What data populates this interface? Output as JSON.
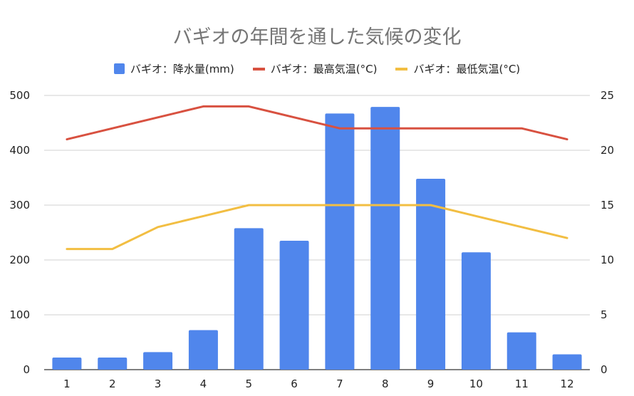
{
  "chart_data": {
    "type": "bar",
    "title": "バギオの年間を通した気候の変化",
    "categories": [
      "1",
      "2",
      "3",
      "4",
      "5",
      "6",
      "7",
      "8",
      "9",
      "10",
      "11",
      "12"
    ],
    "series": [
      {
        "name": "バギオ：降水量(mm)",
        "kind": "bar",
        "axis": "left",
        "color": "#5086ec",
        "values": [
          22,
          22,
          32,
          72,
          258,
          235,
          467,
          479,
          348,
          214,
          68,
          28
        ]
      },
      {
        "name": "バギオ：最高気温(°C)",
        "kind": "line",
        "axis": "right",
        "color": "#d85140",
        "values": [
          21,
          22,
          23,
          24,
          24,
          23,
          22,
          22,
          22,
          22,
          22,
          21
        ]
      },
      {
        "name": "バギオ：最低気温(°C)",
        "kind": "line",
        "axis": "right",
        "color": "#f2be42",
        "values": [
          11,
          11,
          13,
          14,
          15,
          15,
          15,
          15,
          15,
          14,
          13,
          12
        ]
      }
    ],
    "y_left": {
      "min": 0,
      "max": 500,
      "ticks": [
        "0",
        "100",
        "200",
        "300",
        "400",
        "500"
      ]
    },
    "y_right": {
      "min": 0,
      "max": 25,
      "ticks": [
        "0",
        "5",
        "10",
        "15",
        "20",
        "25"
      ]
    },
    "grid": true,
    "legend": "top-center"
  }
}
